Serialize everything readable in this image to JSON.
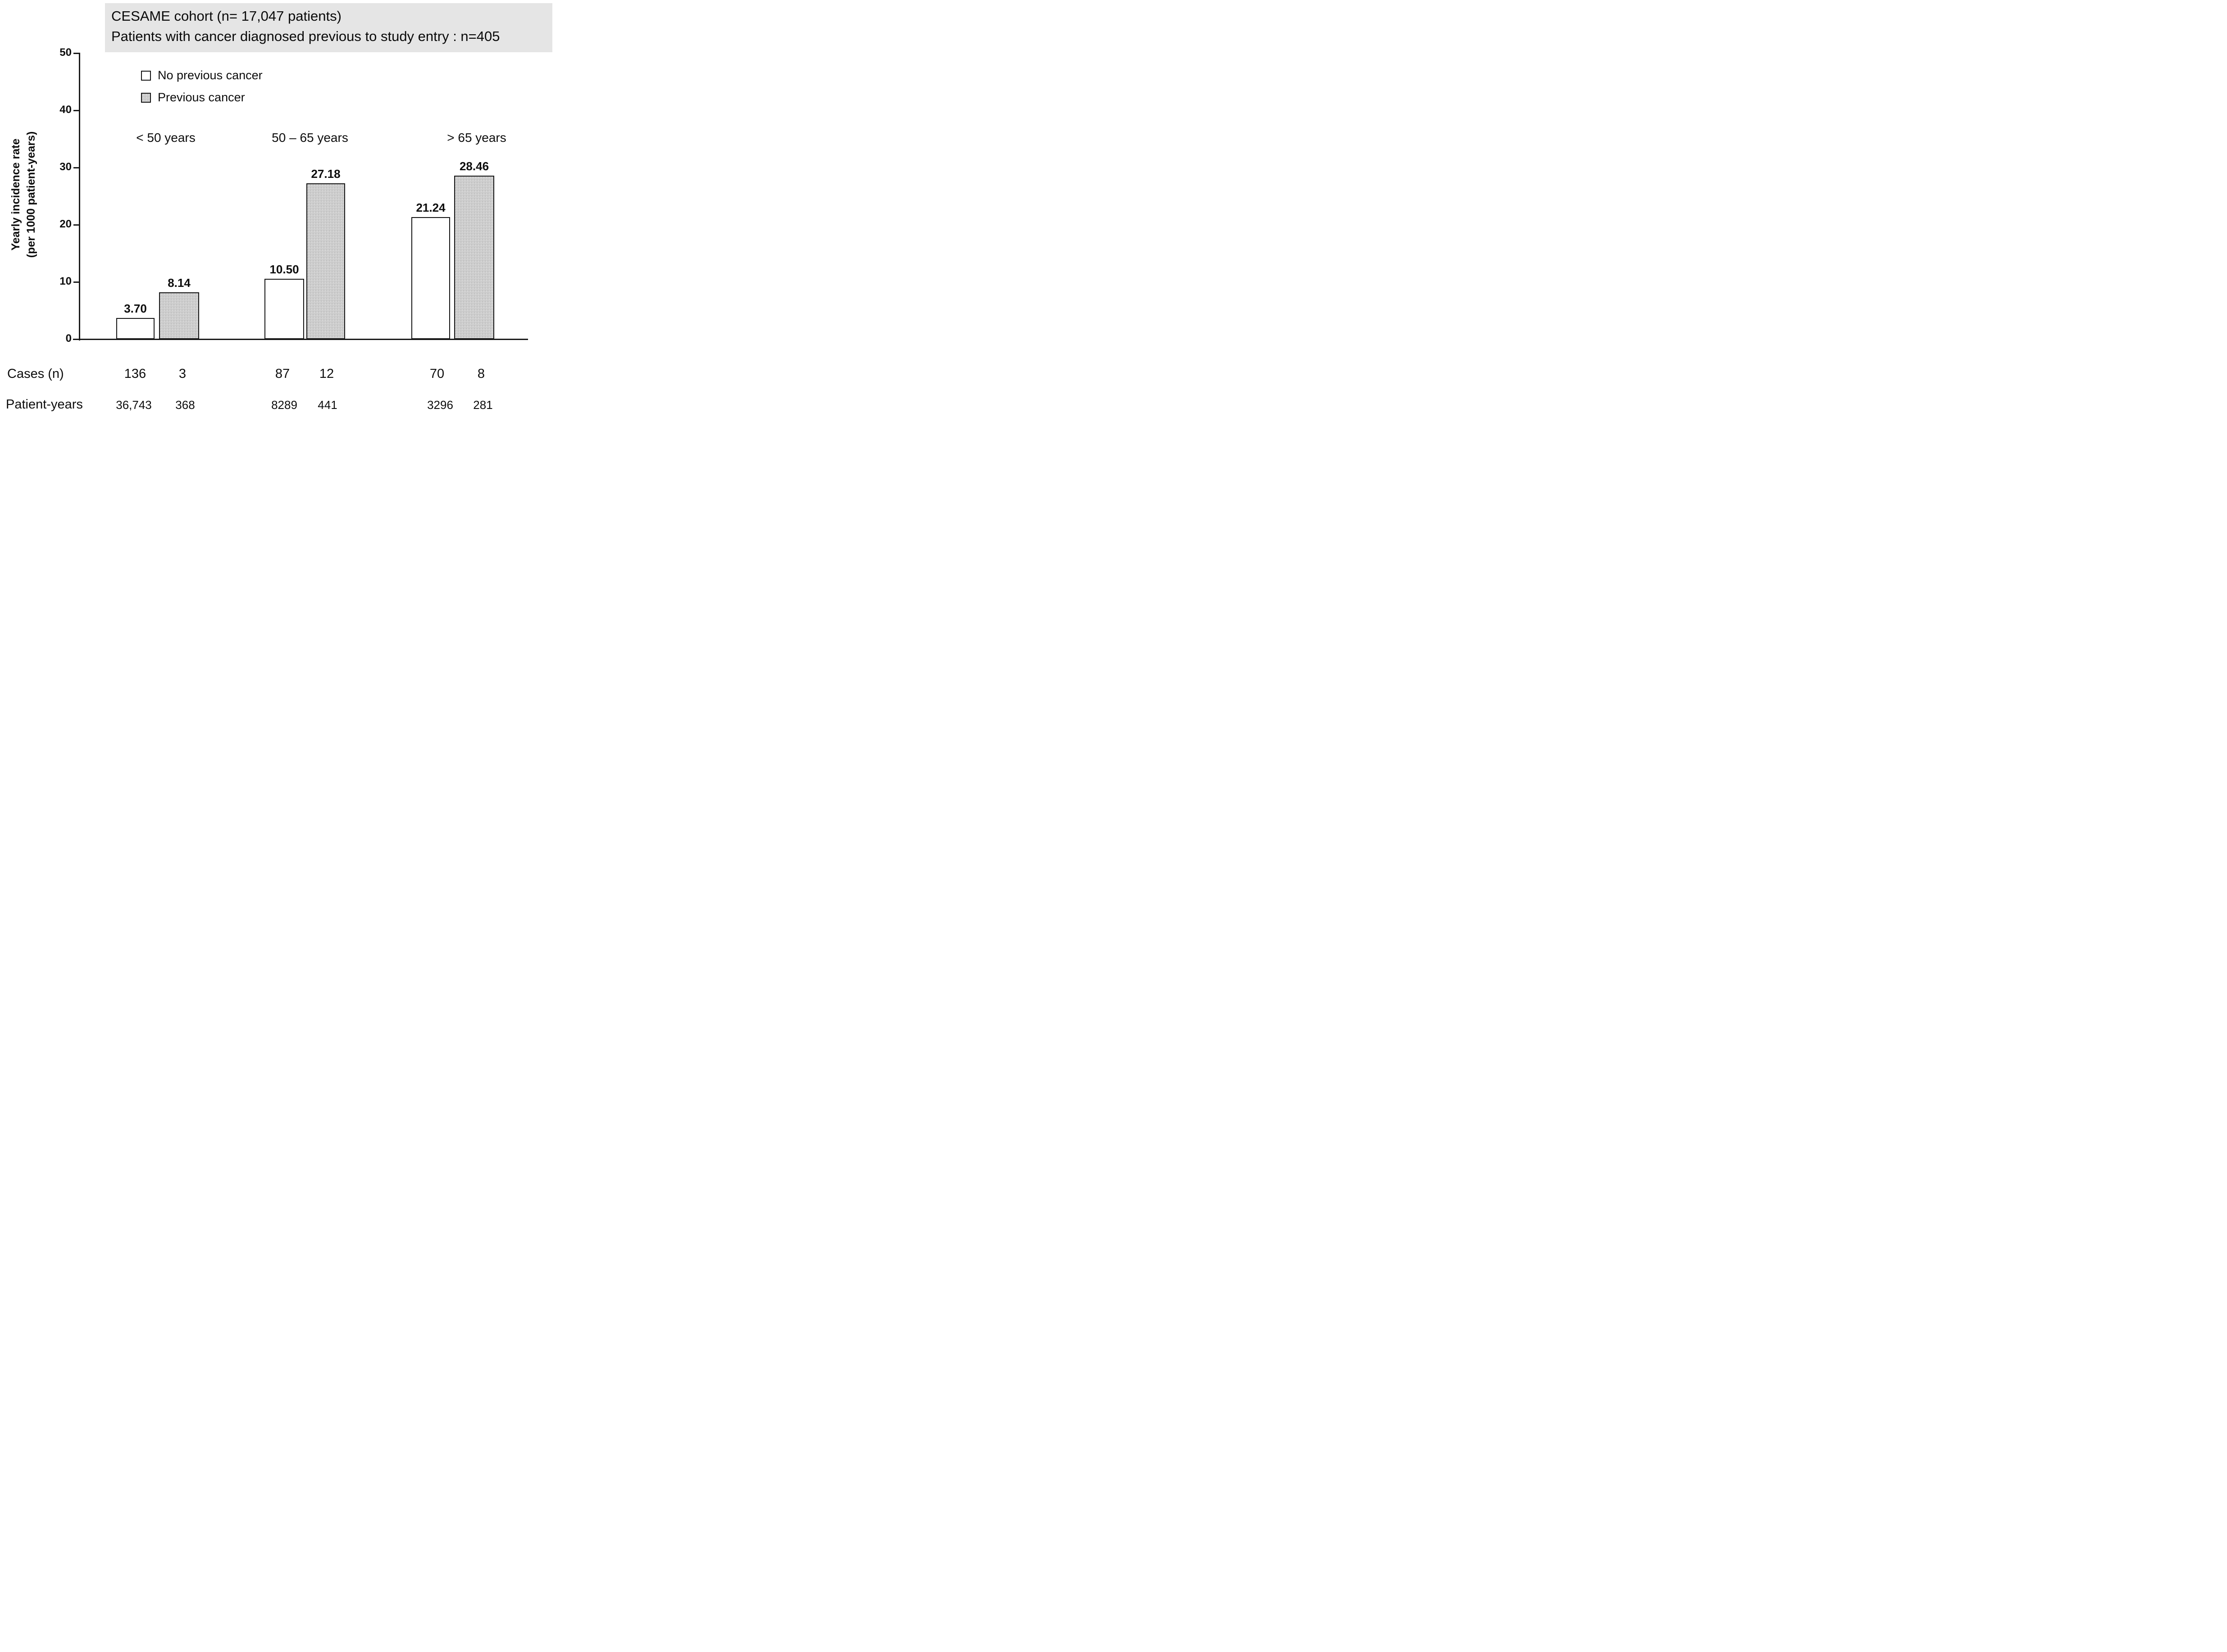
{
  "title": {
    "line1": "CESAME cohort (n= 17,047 patients)",
    "line2": "Patients with cancer diagnosed previous to study entry : n=405"
  },
  "y_axis": {
    "title_line1": "Yearly incidence rate",
    "title_line2": "(per 1000 patient-years)",
    "ticks": [
      "50",
      "40",
      "30",
      "20",
      "10",
      "0"
    ]
  },
  "legend": {
    "items": [
      {
        "label": "No previous cancer",
        "swatch": "white"
      },
      {
        "label": "Previous cancer",
        "swatch": "stippled-gray"
      }
    ]
  },
  "groups": [
    {
      "label": "< 50 years",
      "bars": [
        {
          "series": "No previous cancer",
          "value": 3.7,
          "value_label": "3.70"
        },
        {
          "series": "Previous cancer",
          "value": 8.14,
          "value_label": "8.14"
        }
      ]
    },
    {
      "label": "50 – 65 years",
      "bars": [
        {
          "series": "No previous cancer",
          "value": 10.5,
          "value_label": "10.50"
        },
        {
          "series": "Previous cancer",
          "value": 27.18,
          "value_label": "27.18"
        }
      ]
    },
    {
      "label": "> 65 years",
      "bars": [
        {
          "series": "No previous cancer",
          "value": 21.24,
          "value_label": "21.24"
        },
        {
          "series": "Previous cancer",
          "value": 28.46,
          "value_label": "28.46"
        }
      ]
    }
  ],
  "table": {
    "rows": [
      {
        "label": "Cases (n)",
        "values": [
          "136",
          "3",
          "87",
          "12",
          "70",
          "8"
        ]
      },
      {
        "label": "Patient-years",
        "values": [
          "36,743",
          "368",
          "8289",
          "441",
          "3296",
          "281"
        ]
      }
    ]
  },
  "colors": {
    "title_box_bg": "#e5e5e5",
    "bar_white": "#ffffff",
    "bar_gray": "#cdcdcd",
    "ink": "#141414"
  },
  "chart_data": {
    "type": "bar",
    "title": "CESAME cohort (n= 17,047 patients) — Patients with cancer diagnosed previous to study entry : n=405",
    "categories": [
      "< 50 years",
      "50 – 65 years",
      "> 65 years"
    ],
    "series": [
      {
        "name": "No previous cancer",
        "values": [
          3.7,
          10.5,
          21.24
        ]
      },
      {
        "name": "Previous cancer",
        "values": [
          8.14,
          27.18,
          28.46
        ]
      }
    ],
    "annotations": {
      "cases_n": {
        "No previous cancer": [
          136,
          87,
          70
        ],
        "Previous cancer": [
          3,
          12,
          8
        ]
      },
      "patient_years": {
        "No previous cancer": [
          "36,743",
          "8289",
          "3296"
        ],
        "Previous cancer": [
          "368",
          "441",
          "281"
        ]
      }
    },
    "xlabel": "",
    "ylabel": "Yearly incidence rate (per 1000 patient-years)",
    "ylim": [
      0,
      50
    ],
    "yticks": [
      0,
      10,
      20,
      30,
      40,
      50
    ],
    "grid": false,
    "legend_position": "upper left inside plot",
    "bar_value_labels_shown": true
  }
}
